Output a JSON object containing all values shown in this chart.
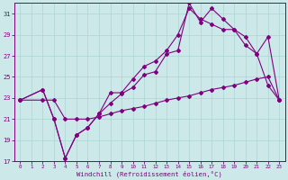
{
  "xlabel": "Windchill (Refroidissement éolien,°C)",
  "ylabel": "",
  "background_color": "#cce8e8",
  "grid_color": "#aad4d4",
  "line_color": "#800080",
  "xlim": [
    -0.5,
    23.5
  ],
  "ylim": [
    17,
    32
  ],
  "yticks": [
    17,
    19,
    21,
    23,
    25,
    27,
    29,
    31
  ],
  "xticks": [
    0,
    1,
    2,
    3,
    4,
    5,
    6,
    7,
    8,
    9,
    10,
    11,
    12,
    13,
    14,
    15,
    16,
    17,
    18,
    19,
    20,
    21,
    22,
    23
  ],
  "line1_x": [
    0,
    2,
    3,
    4,
    5,
    6,
    7,
    8,
    9,
    10,
    11,
    12,
    13,
    14,
    15,
    16,
    17,
    18,
    19,
    20,
    21,
    22,
    23
  ],
  "line1_y": [
    22.8,
    23.8,
    21.0,
    17.3,
    19.5,
    20.2,
    21.5,
    22.5,
    23.4,
    24.0,
    25.2,
    25.5,
    27.2,
    27.5,
    32.0,
    30.2,
    31.5,
    30.5,
    29.5,
    28.8,
    27.2,
    28.8,
    22.8
  ],
  "line2_x": [
    0,
    2,
    3,
    4,
    5,
    6,
    7,
    8,
    9,
    10,
    11,
    12,
    13,
    14,
    15,
    16,
    17,
    18,
    19,
    20,
    21,
    22,
    23
  ],
  "line2_y": [
    22.8,
    23.8,
    21.0,
    17.3,
    19.5,
    20.2,
    21.5,
    23.5,
    23.5,
    24.8,
    26.0,
    26.5,
    27.5,
    29.0,
    31.5,
    30.5,
    30.0,
    29.5,
    29.5,
    28.0,
    27.2,
    24.2,
    22.8
  ],
  "line3_x": [
    0,
    2,
    3,
    4,
    5,
    6,
    7,
    8,
    9,
    10,
    11,
    12,
    13,
    14,
    15,
    16,
    17,
    18,
    19,
    20,
    21,
    22,
    23
  ],
  "line3_y": [
    22.8,
    22.8,
    22.8,
    21.0,
    21.0,
    21.0,
    21.2,
    21.5,
    21.8,
    22.0,
    22.2,
    22.5,
    22.8,
    23.0,
    23.2,
    23.5,
    23.8,
    24.0,
    24.2,
    24.5,
    24.8,
    25.0,
    22.8
  ]
}
